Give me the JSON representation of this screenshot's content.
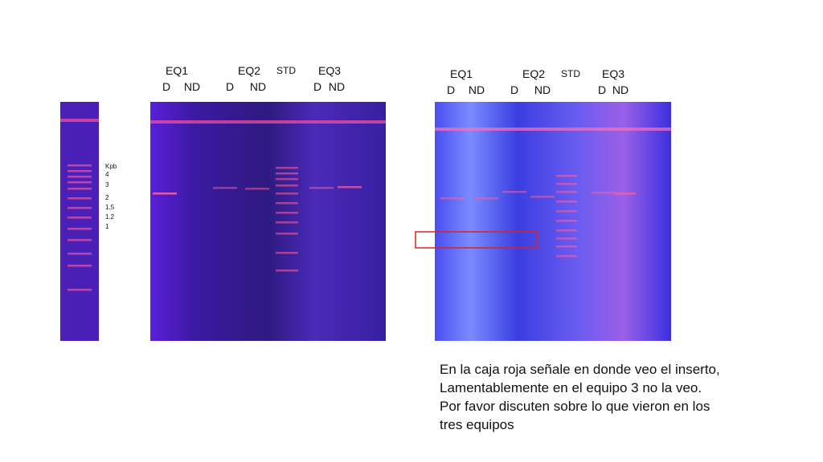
{
  "left_gel": {
    "lanes": [
      "EQ1",
      "EQ2",
      "STD",
      "EQ3"
    ],
    "samples": [
      "D",
      "ND",
      "D",
      "ND",
      "D",
      "ND"
    ],
    "marker": [
      "Kpb",
      "4",
      "3",
      "2",
      "1.5",
      "1.2",
      "1"
    ]
  },
  "right_gel": {
    "lanes": [
      "EQ1",
      "EQ2",
      "STD",
      "EQ3"
    ],
    "samples": [
      "D",
      "ND",
      "D",
      "ND",
      "D",
      "ND"
    ]
  },
  "caption": [
    "En la caja roja señale en donde veo el inserto,",
    "Lamentablemente en el equipo 3 no la veo.",
    "Por favor discuten sobre lo que vieron en los",
    "tres equipos"
  ]
}
